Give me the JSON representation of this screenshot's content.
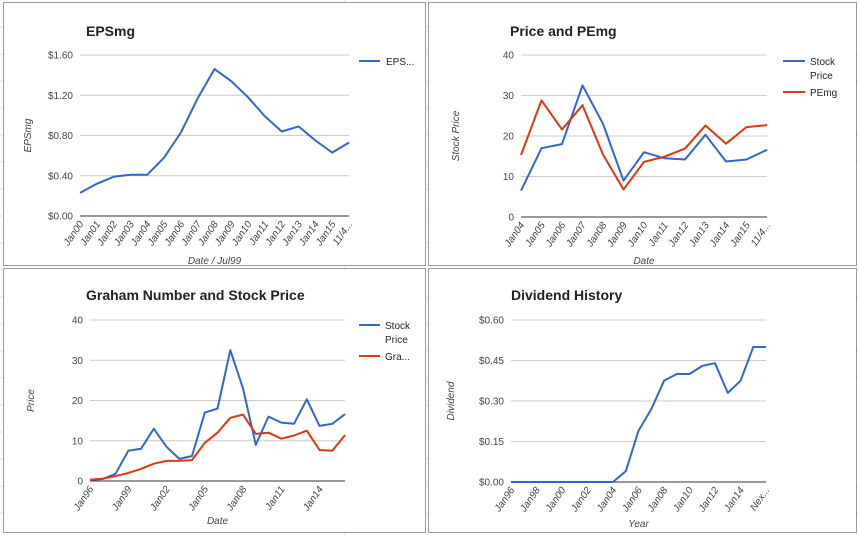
{
  "colors": {
    "blue": "#3366cc",
    "red": "#dc3912",
    "grid": "#cccccc"
  },
  "chart_data": [
    {
      "type": "line",
      "title": "EPSmg",
      "xlabel": "Date / Jul99",
      "ylabel": "EPSmg",
      "ylim": [
        0,
        1.6
      ],
      "yticks": [
        "$0.00",
        "$0.40",
        "$0.80",
        "$1.20",
        "$1.60"
      ],
      "x": [
        "Jan00",
        "Jan01",
        "Jan02",
        "Jan03",
        "Jan04",
        "Jan05",
        "Jan06",
        "Jan07",
        "Jan08",
        "Jan09",
        "Jan10",
        "Jan11",
        "Jan12",
        "Jan13",
        "Jan14",
        "Jan15",
        "11/4..."
      ],
      "series": [
        {
          "name": "EPS...",
          "color": "#3366cc",
          "values": [
            0.23,
            0.32,
            0.39,
            0.41,
            0.41,
            0.58,
            0.83,
            1.17,
            1.46,
            1.34,
            1.18,
            0.99,
            0.84,
            0.89,
            0.75,
            0.63,
            0.73
          ]
        }
      ]
    },
    {
      "type": "line",
      "title": "Price and PEmg",
      "xlabel": "Date",
      "ylabel": "Stock Price",
      "ylim": [
        0,
        40
      ],
      "yticks": [
        "0",
        "10",
        "20",
        "30",
        "40"
      ],
      "x": [
        "Jan04",
        "Jan05",
        "Jan06",
        "Jan07",
        "Jan08",
        "Jan09",
        "Jan10",
        "Jan11",
        "Jan12",
        "Jan13",
        "Jan14",
        "Jan15",
        "11/4..."
      ],
      "series": [
        {
          "name": "Stock Price",
          "color": "#3366cc",
          "values": [
            6.5,
            17.0,
            18.0,
            32.5,
            23.0,
            9.0,
            16.0,
            14.5,
            14.2,
            20.3,
            13.7,
            14.2,
            16.6
          ]
        },
        {
          "name": "PEmg",
          "color": "#dc3912",
          "values": [
            15.3,
            28.8,
            21.6,
            27.6,
            15.4,
            6.8,
            13.6,
            14.9,
            16.9,
            22.6,
            18.1,
            22.2,
            22.7
          ]
        }
      ]
    },
    {
      "type": "line",
      "title": "Graham Number and Stock Price",
      "xlabel": "Date",
      "ylabel": "Price",
      "ylim": [
        0,
        40
      ],
      "yticks": [
        "0",
        "10",
        "20",
        "30",
        "40"
      ],
      "xtick_labels": [
        "Jan96",
        "Jan99",
        "Jan02",
        "Jan05",
        "Jan08",
        "Jan11",
        "Jan14"
      ],
      "x": [
        "Jan96",
        "Jan97",
        "Jan98",
        "Jan99",
        "Jan00",
        "Jan01",
        "Jan02",
        "Jan03",
        "Jan04",
        "Jan05",
        "Jan06",
        "Jan07",
        "Jan08",
        "Jan09",
        "Jan10",
        "Jan11",
        "Jan12",
        "Jan13",
        "Jan14",
        "Jan15",
        "11/4"
      ],
      "series": [
        {
          "name": "Stock Price",
          "color": "#3366cc",
          "values": [
            0.3,
            0.5,
            1.8,
            7.5,
            8.0,
            13.0,
            8.5,
            5.5,
            6.2,
            17.0,
            18.0,
            32.5,
            23.0,
            9.0,
            16.0,
            14.5,
            14.2,
            20.3,
            13.7,
            14.2,
            16.6
          ]
        },
        {
          "name": "Gra...",
          "color": "#dc3912",
          "values": [
            0.3,
            0.6,
            1.2,
            2.0,
            3.0,
            4.3,
            5.0,
            5.0,
            5.2,
            9.5,
            12.0,
            15.7,
            16.5,
            11.7,
            12.0,
            10.5,
            11.3,
            12.5,
            7.7,
            7.5,
            11.4
          ]
        }
      ]
    },
    {
      "type": "line",
      "title": "Dividend History",
      "xlabel": "Year",
      "ylabel": "Dividend",
      "ylim": [
        0,
        0.6
      ],
      "yticks": [
        "$0.00",
        "$0.15",
        "$0.30",
        "$0.45",
        "$0.60"
      ],
      "xtick_labels": [
        "Jan96",
        "Jan98",
        "Jan00",
        "Jan02",
        "Jan04",
        "Jan06",
        "Jan08",
        "Jan10",
        "Jan12",
        "Jan14",
        "Nex..."
      ],
      "x": [
        "Jan96",
        "Jan97",
        "Jan98",
        "Jan99",
        "Jan00",
        "Jan01",
        "Jan02",
        "Jan03",
        "Jan04",
        "Jan05",
        "Jan06",
        "Jan07",
        "Jan08",
        "Jan09",
        "Jan10",
        "Jan11",
        "Jan12",
        "Jan13",
        "Jan14",
        "Jan15",
        "Nex..."
      ],
      "series": [
        {
          "name": "Dividend",
          "color": "#3366cc",
          "values": [
            0,
            0,
            0,
            0,
            0,
            0,
            0,
            0,
            0,
            0.04,
            0.19,
            0.27,
            0.375,
            0.4,
            0.4,
            0.43,
            0.44,
            0.33,
            0.375,
            0.5,
            0.5
          ]
        }
      ]
    }
  ]
}
